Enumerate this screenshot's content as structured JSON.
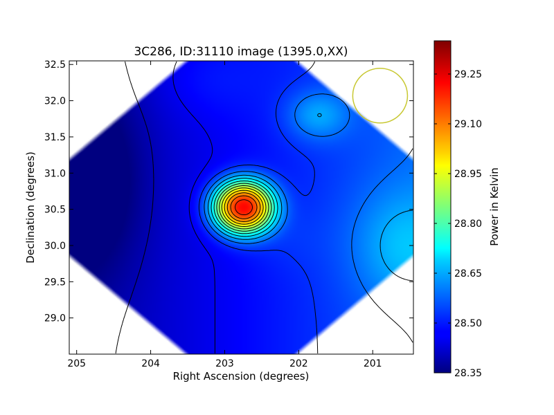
{
  "chart_data": {
    "type": "heatmap",
    "title": "3C286, ID:31110 image (1395.0,XX)",
    "xlabel": "Right Ascension (degrees)",
    "ylabel": "Declination (degrees)",
    "xlim": [
      205.1,
      200.45
    ],
    "ylim": [
      28.5,
      32.55
    ],
    "x_inverted": true,
    "xticks": [
      205,
      204,
      203,
      202,
      201
    ],
    "xtick_labels": [
      "205",
      "204",
      "203",
      "202",
      "201"
    ],
    "yticks": [
      29.0,
      29.5,
      30.0,
      30.5,
      31.0,
      31.5,
      32.0,
      32.5
    ],
    "ytick_labels": [
      "29.0",
      "29.5",
      "30.0",
      "30.5",
      "31.0",
      "31.5",
      "32.0",
      "32.5"
    ],
    "colormap": "jet",
    "colorbar": {
      "label": "Power in Kelvin",
      "min": 28.35,
      "max": 29.35,
      "ticks": [
        28.35,
        28.5,
        28.65,
        28.8,
        28.95,
        29.1,
        29.25
      ],
      "tick_labels": [
        "28.35",
        "28.50",
        "28.65",
        "28.80",
        "28.95",
        "29.10",
        "29.25"
      ]
    },
    "peak": {
      "ra": 202.75,
      "dec": 30.53,
      "value": 29.34
    },
    "secondary_maxima": [
      {
        "ra": 201.75,
        "dec": 31.8,
        "value": 28.68
      },
      {
        "ra": 200.6,
        "dec": 30.0,
        "value": 28.7
      }
    ],
    "minimum_region": {
      "ra": 204.8,
      "dec": 30.9,
      "value": 28.37
    },
    "beam": {
      "ra": 200.9,
      "dec": 32.07,
      "radius_deg": 0.37,
      "color": "#c8c832"
    }
  }
}
